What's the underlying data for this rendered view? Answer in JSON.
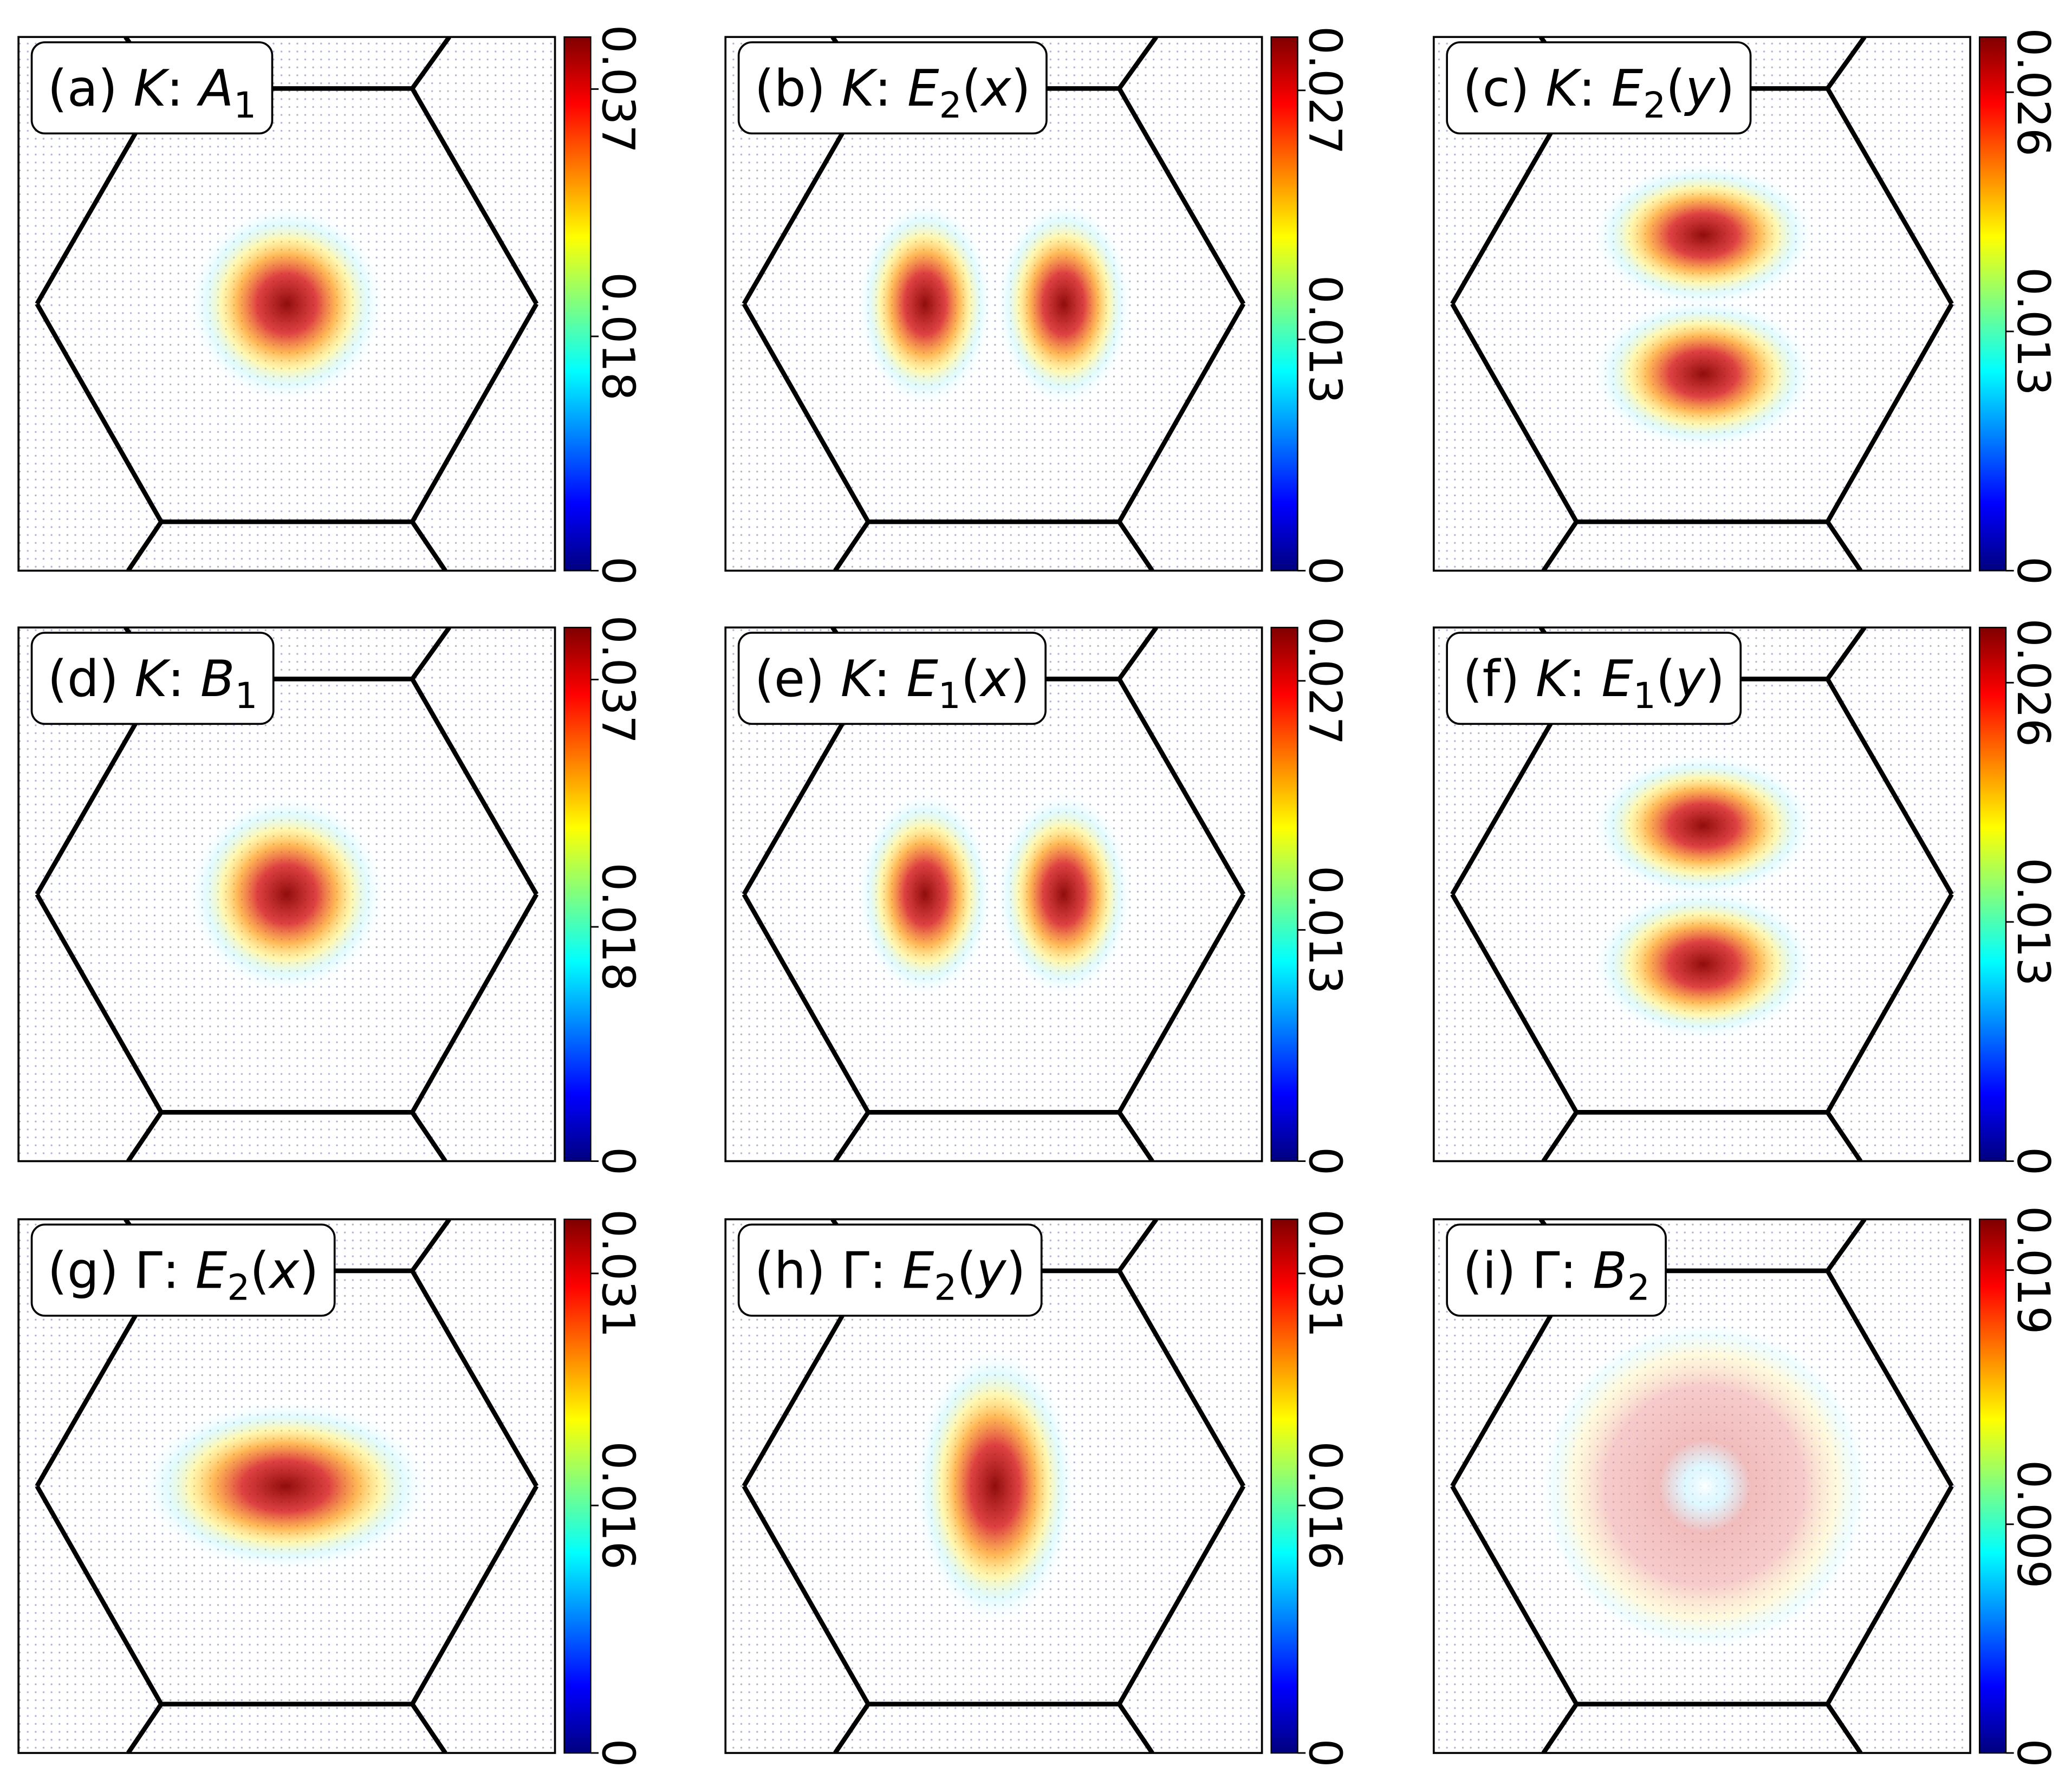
{
  "chart_data": [
    {
      "type": "heatmap",
      "colormap": "jet",
      "title": [
        {
          "text": "(a) ",
          "style": "normal"
        },
        {
          "text": "K",
          "style": "italic"
        },
        {
          "text": ": ",
          "style": "normal"
        },
        {
          "text": "A",
          "style": "italic"
        },
        {
          "text": "1",
          "style": "sub"
        }
      ],
      "clim": [
        0,
        0.041
      ],
      "cticks": [
        0,
        0.018,
        0.037
      ]
    },
    {
      "type": "heatmap",
      "colormap": "jet",
      "title": [
        {
          "text": "(b) ",
          "style": "normal"
        },
        {
          "text": "K",
          "style": "italic"
        },
        {
          "text": ": ",
          "style": "normal"
        },
        {
          "text": "E",
          "style": "italic"
        },
        {
          "text": "2",
          "style": "sub"
        },
        {
          "text": "(",
          "style": "normal"
        },
        {
          "text": "x",
          "style": "italic"
        },
        {
          "text": ")",
          "style": "normal"
        }
      ],
      "clim": [
        0,
        0.03
      ],
      "cticks": [
        0,
        0.013,
        0.027
      ]
    },
    {
      "type": "heatmap",
      "colormap": "jet",
      "title": [
        {
          "text": "(c) ",
          "style": "normal"
        },
        {
          "text": "K",
          "style": "italic"
        },
        {
          "text": ": ",
          "style": "normal"
        },
        {
          "text": "E",
          "style": "italic"
        },
        {
          "text": "2",
          "style": "sub"
        },
        {
          "text": "(",
          "style": "normal"
        },
        {
          "text": "y",
          "style": "italic"
        },
        {
          "text": ")",
          "style": "normal"
        }
      ],
      "clim": [
        0,
        0.029
      ],
      "cticks": [
        0,
        0.013,
        0.026
      ]
    },
    {
      "type": "heatmap",
      "colormap": "jet",
      "title": [
        {
          "text": "(d) ",
          "style": "normal"
        },
        {
          "text": "K",
          "style": "italic"
        },
        {
          "text": ": ",
          "style": "normal"
        },
        {
          "text": "B",
          "style": "italic"
        },
        {
          "text": "1",
          "style": "sub"
        }
      ],
      "clim": [
        0,
        0.041
      ],
      "cticks": [
        0,
        0.018,
        0.037
      ]
    },
    {
      "type": "heatmap",
      "colormap": "jet",
      "title": [
        {
          "text": "(e) ",
          "style": "normal"
        },
        {
          "text": "K",
          "style": "italic"
        },
        {
          "text": ": ",
          "style": "normal"
        },
        {
          "text": "E",
          "style": "italic"
        },
        {
          "text": "1",
          "style": "sub"
        },
        {
          "text": "(",
          "style": "normal"
        },
        {
          "text": "x",
          "style": "italic"
        },
        {
          "text": ")",
          "style": "normal"
        }
      ],
      "clim": [
        0,
        0.03
      ],
      "cticks": [
        0,
        0.013,
        0.027
      ]
    },
    {
      "type": "heatmap",
      "colormap": "jet",
      "title": [
        {
          "text": "(f) ",
          "style": "normal"
        },
        {
          "text": "K",
          "style": "italic"
        },
        {
          "text": ": ",
          "style": "normal"
        },
        {
          "text": "E",
          "style": "italic"
        },
        {
          "text": "1",
          "style": "sub"
        },
        {
          "text": "(",
          "style": "normal"
        },
        {
          "text": "y",
          "style": "italic"
        },
        {
          "text": ")",
          "style": "normal"
        }
      ],
      "clim": [
        0,
        0.029
      ],
      "cticks": [
        0,
        0.013,
        0.026
      ]
    },
    {
      "type": "heatmap",
      "colormap": "jet",
      "title": [
        {
          "text": "(g) Γ: ",
          "style": "normal"
        },
        {
          "text": "E",
          "style": "italic"
        },
        {
          "text": "2",
          "style": "sub"
        },
        {
          "text": "(",
          "style": "normal"
        },
        {
          "text": "x",
          "style": "italic"
        },
        {
          "text": ")",
          "style": "normal"
        }
      ],
      "clim": [
        0,
        0.0345
      ],
      "cticks": [
        0,
        0.016,
        0.031
      ]
    },
    {
      "type": "heatmap",
      "colormap": "jet",
      "title": [
        {
          "text": "(h) Γ: ",
          "style": "normal"
        },
        {
          "text": "E",
          "style": "italic"
        },
        {
          "text": "2",
          "style": "sub"
        },
        {
          "text": "(",
          "style": "normal"
        },
        {
          "text": "y",
          "style": "italic"
        },
        {
          "text": ")",
          "style": "normal"
        }
      ],
      "clim": [
        0,
        0.0345
      ],
      "cticks": [
        0,
        0.016,
        0.031
      ]
    },
    {
      "type": "heatmap",
      "colormap": "jet",
      "title": [
        {
          "text": "(i) Γ: ",
          "style": "normal"
        },
        {
          "text": "B",
          "style": "italic"
        },
        {
          "text": "2",
          "style": "sub"
        }
      ],
      "clim": [
        0,
        0.021
      ],
      "cticks": [
        0,
        0.009,
        0.019
      ]
    }
  ]
}
